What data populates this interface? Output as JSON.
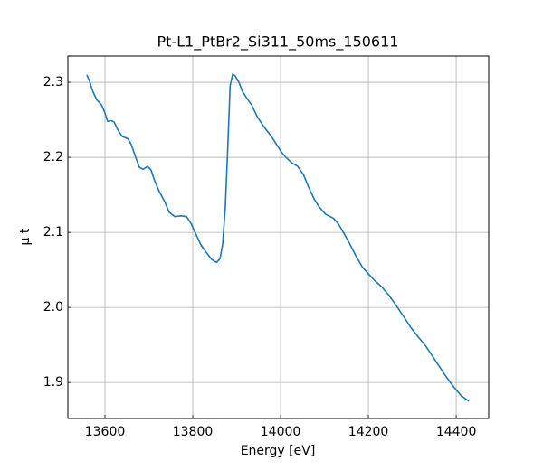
{
  "chart_data": {
    "type": "line",
    "title": "Pt-L1_PtBr2_Si311_50ms_150611",
    "x_label": "Energy [eV]",
    "y_label": "μ t",
    "color": "#1f77b4",
    "grid": true,
    "x": [
      13558.8,
      13565,
      13573,
      13581,
      13592,
      13600,
      13606,
      13614,
      13621,
      13629,
      13639,
      13652,
      13660,
      13670,
      13678,
      13687,
      13697,
      13705,
      13713,
      13724,
      13736,
      13746,
      13759,
      13773,
      13786,
      13796,
      13806,
      13818,
      13831,
      13843,
      13854,
      13862,
      13868,
      13874,
      13880,
      13885,
      13891,
      13897,
      13905,
      13913,
      13924,
      13934,
      13946,
      13957,
      13967,
      13979,
      13992,
      14002,
      14012,
      14025,
      14039,
      14052,
      14064,
      14076,
      14089,
      14103,
      14120,
      14132,
      14144,
      14159,
      14173,
      14186,
      14198,
      14214,
      14231,
      14247,
      14264,
      14280,
      14297,
      14313,
      14330,
      14346,
      14363,
      14379,
      14396,
      14412,
      14429
    ],
    "values": [
      2.31,
      2.301,
      2.287,
      2.277,
      2.27,
      2.259,
      2.248,
      2.249,
      2.247,
      2.237,
      2.228,
      2.225,
      2.217,
      2.2,
      2.187,
      2.184,
      2.188,
      2.183,
      2.169,
      2.154,
      2.141,
      2.127,
      2.121,
      2.122,
      2.121,
      2.112,
      2.099,
      2.084,
      2.073,
      2.064,
      2.06,
      2.065,
      2.084,
      2.133,
      2.217,
      2.295,
      2.311,
      2.308,
      2.3,
      2.288,
      2.278,
      2.27,
      2.255,
      2.245,
      2.237,
      2.228,
      2.216,
      2.207,
      2.2,
      2.193,
      2.188,
      2.177,
      2.16,
      2.145,
      2.133,
      2.124,
      2.119,
      2.111,
      2.099,
      2.083,
      2.067,
      2.054,
      2.046,
      2.036,
      2.027,
      2.016,
      2.002,
      1.988,
      1.973,
      1.961,
      1.949,
      1.935,
      1.92,
      1.906,
      1.893,
      1.882,
      1.875
    ],
    "xlim": [
      13515.5,
      14474
    ],
    "ylim": [
      1.852,
      2.335
    ],
    "xticks": [
      13600,
      13800,
      14000,
      14200,
      14400
    ],
    "yticks": [
      {
        "value": 1.9,
        "label": "1.9"
      },
      {
        "value": 2.0,
        "label": "2.0"
      },
      {
        "value": 2.1,
        "label": "2.1"
      },
      {
        "value": 2.2,
        "label": "2.2"
      },
      {
        "value": 2.3,
        "label": "2.3"
      }
    ]
  }
}
